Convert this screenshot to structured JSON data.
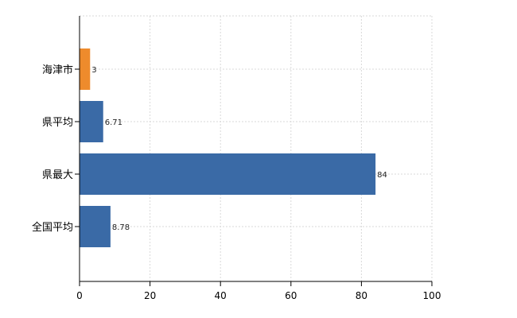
{
  "chart_data": {
    "type": "bar",
    "orientation": "horizontal",
    "categories": [
      "海津市",
      "県平均",
      "県最大",
      "全国平均"
    ],
    "values": [
      3,
      6.71,
      84,
      8.78
    ],
    "value_labels": [
      "3",
      "6.71",
      "84",
      "8.78"
    ],
    "bar_colors": [
      "#ee8b2c",
      "#3a6aa6",
      "#3a6aa6",
      "#3a6aa6"
    ],
    "xlim": [
      0,
      100
    ],
    "xticks": [
      0,
      20,
      40,
      60,
      80,
      100
    ],
    "grid": true,
    "title": "",
    "xlabel": "",
    "ylabel": ""
  }
}
